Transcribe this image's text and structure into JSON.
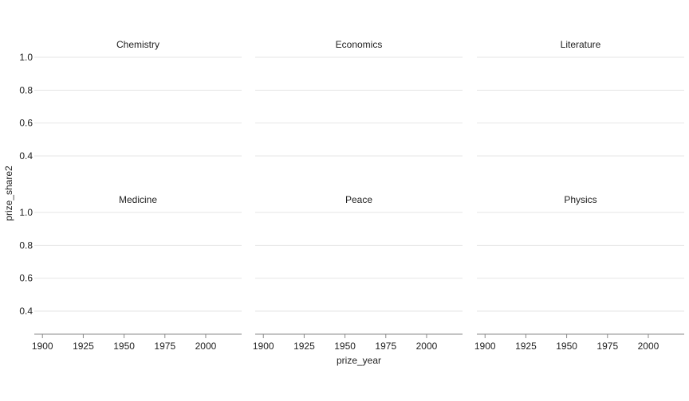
{
  "chart_data": {
    "type": "scatter",
    "xlabel": "prize_year",
    "ylabel": "prize_share2",
    "facets": [
      "Chemistry",
      "Economics",
      "Literature",
      "Medicine",
      "Peace",
      "Physics"
    ],
    "x_ticks": [
      1900,
      1925,
      1950,
      1975,
      2000
    ],
    "x_tick_labels": [
      "1900",
      "1925",
      "1950",
      "1975",
      "2000"
    ],
    "xlim": [
      1895,
      2022
    ],
    "y_ticks": [
      0.4,
      0.6,
      0.8,
      1.0
    ],
    "y_tick_labels": [
      "0.4",
      "0.6",
      "0.8",
      "1.0"
    ],
    "ylim": [
      0.25,
      1.0
    ],
    "grid": true,
    "series": []
  }
}
